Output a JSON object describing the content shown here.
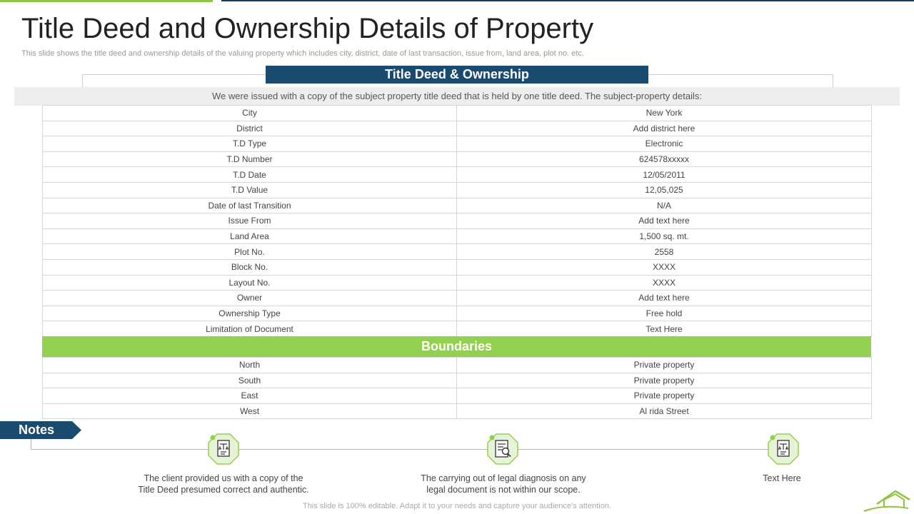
{
  "title": "Title Deed and Ownership Details of Property",
  "subtitle": "This slide shows the title deed and ownership details of the valuing property which includes city, district, date of last transaction, issue from, land area, plot no. etc.",
  "deed_header": "Title Deed & Ownership",
  "intro": "We were issued with a copy of the subject property title deed that is held by one title deed. The subject-property details:",
  "details": [
    {
      "label": "City",
      "value": "New York"
    },
    {
      "label": "District",
      "value": "Add district here"
    },
    {
      "label": "T.D Type",
      "value": "Electronic"
    },
    {
      "label": "T.D Number",
      "value": "624578xxxxx"
    },
    {
      "label": "T.D Date",
      "value": "12/05/2011"
    },
    {
      "label": "T.D Value",
      "value": "12,05,025"
    },
    {
      "label": "Date of last Transition",
      "value": "N/A"
    },
    {
      "label": "Issue From",
      "value": "Add text here"
    },
    {
      "label": "Land Area",
      "value": "1,500 sq. mt."
    },
    {
      "label": "Plot No.",
      "value": "2558"
    },
    {
      "label": "Block No.",
      "value": "XXXX"
    },
    {
      "label": "Layout No.",
      "value": "XXXX"
    },
    {
      "label": "Owner",
      "value": "Add text here"
    },
    {
      "label": "Ownership Type",
      "value": "Free hold"
    },
    {
      "label": "Limitation of Document",
      "value": "Text Here"
    }
  ],
  "boundaries_header": "Boundaries",
  "boundaries": [
    {
      "label": "North",
      "value": "Private property"
    },
    {
      "label": "South",
      "value": "Private property"
    },
    {
      "label": "East",
      "value": "Private property"
    },
    {
      "label": "West",
      "value": "Al rida Street"
    }
  ],
  "notes": {
    "label": "Notes",
    "items": [
      {
        "line1": "The client provided  us with a copy of the",
        "line2": "Title Deed presumed correct and authentic.",
        "icon": "legal-document-icon"
      },
      {
        "line1": "The carrying out of legal diagnosis on any",
        "line2": "legal document is not within our scope.",
        "icon": "document-search-icon"
      },
      {
        "line1": "Text Here",
        "line2": "",
        "icon": "legal-document-icon"
      }
    ]
  },
  "footer": "This slide is 100% editable. Adapt it to your needs and capture your audience's attention.",
  "colors": {
    "navy": "#1a4a6e",
    "green": "#92d050",
    "accent_green": "#8dc63f"
  }
}
